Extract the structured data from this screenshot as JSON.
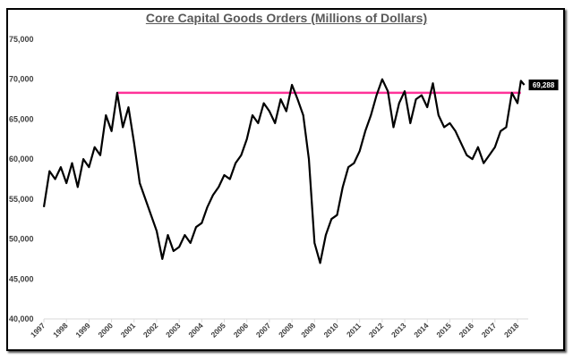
{
  "chart_data": {
    "type": "line",
    "title": "Core Capital Goods Orders (Millions of Dollars)",
    "xlabel": "",
    "ylabel": "",
    "ylim": [
      40000,
      75000
    ],
    "xlim": [
      1997,
      2018.5
    ],
    "y_ticks": [
      "40,000",
      "45,000",
      "50,000",
      "55,000",
      "60,000",
      "65,000",
      "70,000",
      "75,000"
    ],
    "y_tick_values": [
      40000,
      45000,
      50000,
      55000,
      60000,
      65000,
      70000,
      75000
    ],
    "x_ticks": [
      "1997",
      "1998",
      "1999",
      "2000",
      "2001",
      "2002",
      "2003",
      "2004",
      "2005",
      "2006",
      "2007",
      "2008",
      "2009",
      "2010",
      "2011",
      "2012",
      "2013",
      "2014",
      "2015",
      "2016",
      "2017",
      "2018"
    ],
    "grid": false,
    "series": [
      {
        "name": "Core Capital Goods Orders",
        "color": "#000000",
        "x": [
          1997,
          1997.25,
          1997.5,
          1997.75,
          1998,
          1998.25,
          1998.5,
          1998.75,
          1999,
          1999.25,
          1999.5,
          1999.75,
          2000,
          2000.25,
          2000.5,
          2000.75,
          2001,
          2001.25,
          2001.5,
          2001.75,
          2002,
          2002.25,
          2002.5,
          2002.75,
          2003,
          2003.25,
          2003.5,
          2003.75,
          2004,
          2004.25,
          2004.5,
          2004.75,
          2005,
          2005.25,
          2005.5,
          2005.75,
          2006,
          2006.25,
          2006.5,
          2006.75,
          2007,
          2007.25,
          2007.5,
          2007.75,
          2008,
          2008.25,
          2008.5,
          2008.75,
          2009,
          2009.25,
          2009.5,
          2009.75,
          2010,
          2010.25,
          2010.5,
          2010.75,
          2011,
          2011.25,
          2011.5,
          2011.75,
          2012,
          2012.25,
          2012.5,
          2012.75,
          2013,
          2013.25,
          2013.5,
          2013.75,
          2014,
          2014.25,
          2014.5,
          2014.75,
          2015,
          2015.25,
          2015.5,
          2015.75,
          2016,
          2016.25,
          2016.5,
          2016.75,
          2017,
          2017.25,
          2017.5,
          2017.75,
          2018,
          2018.15,
          2018.3
        ],
        "values": [
          54000,
          58500,
          57500,
          59000,
          57000,
          59500,
          56500,
          60000,
          59000,
          61500,
          60500,
          65500,
          63500,
          68300,
          64000,
          66500,
          62000,
          57000,
          55000,
          53000,
          51000,
          47500,
          50500,
          48500,
          49000,
          50500,
          49500,
          51500,
          52000,
          54000,
          55500,
          56500,
          58000,
          57500,
          59500,
          60500,
          62500,
          65500,
          64500,
          67000,
          66000,
          64500,
          67500,
          66000,
          69300,
          67500,
          65500,
          60000,
          49500,
          47000,
          50500,
          52500,
          53000,
          56500,
          59000,
          59500,
          61000,
          63500,
          65500,
          68000,
          70000,
          68500,
          64000,
          67000,
          68500,
          64500,
          67500,
          68000,
          66500,
          69500,
          65500,
          64000,
          64500,
          63500,
          62000,
          60500,
          60000,
          61500,
          59500,
          60500,
          61500,
          63500,
          64000,
          68300,
          67000,
          69800,
          69288
        ]
      }
    ],
    "reference_line": {
      "value": 68300,
      "x_start": 2000.25,
      "x_end": 2018.15,
      "color": "#ff3399"
    },
    "last_value_label": "69,288"
  }
}
